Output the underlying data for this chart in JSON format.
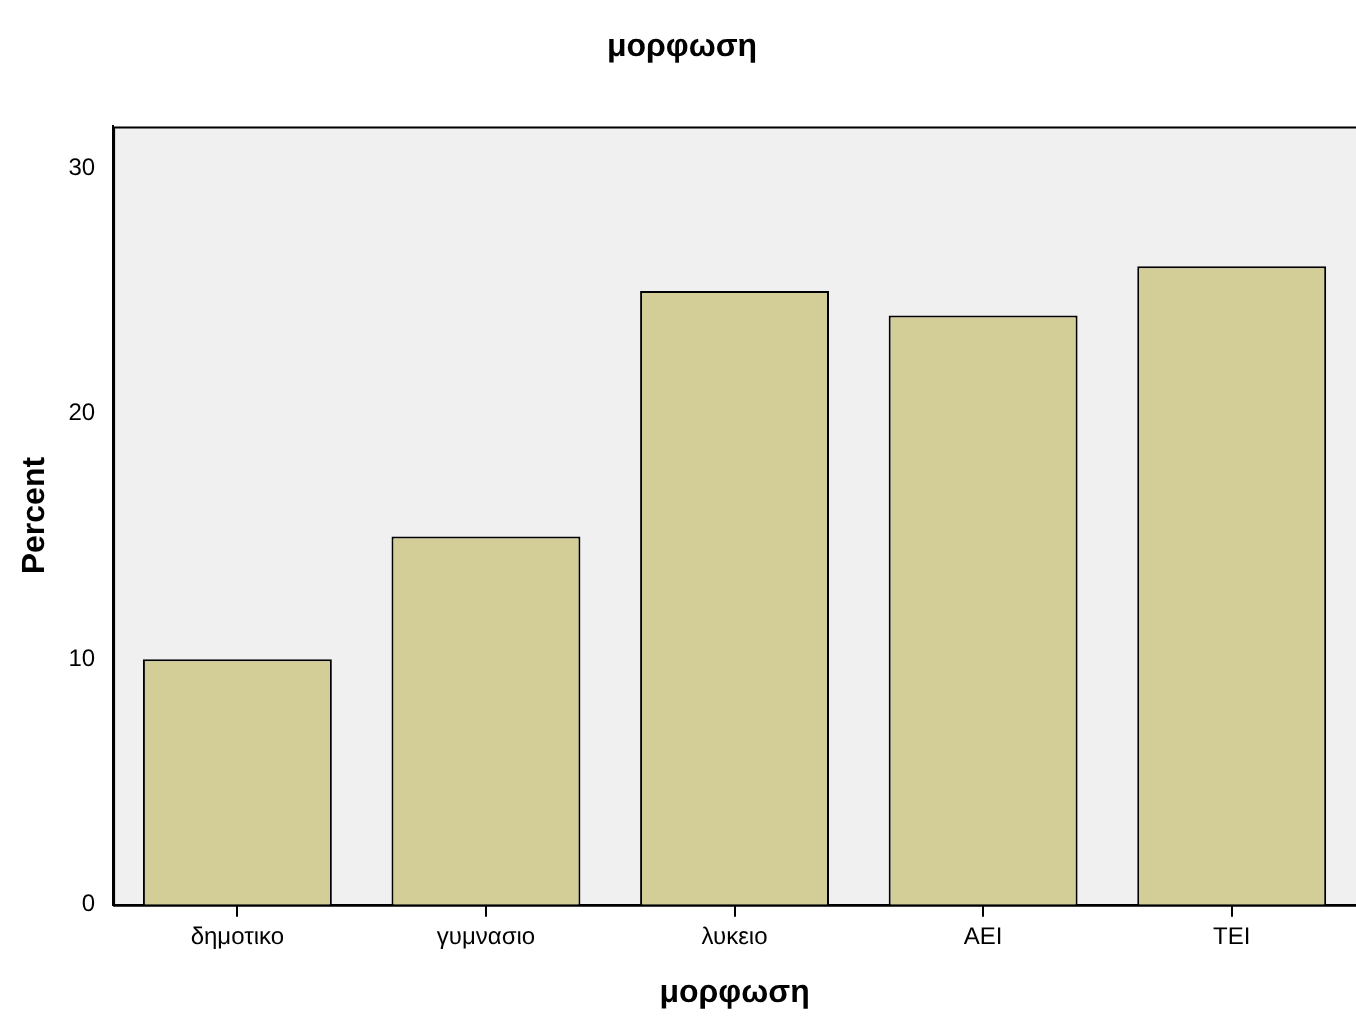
{
  "chart_data": {
    "type": "bar",
    "title": "μορφωση",
    "xlabel": "μορφωση",
    "ylabel": "Percent",
    "categories": [
      "δημοτικο",
      "γυμνασιο",
      "λυκειο",
      "ΑΕΙ",
      "ΤΕΙ"
    ],
    "values": [
      10,
      15,
      25,
      24,
      26
    ],
    "color": "#d3ce98",
    "ylim": [
      0,
      31.7
    ],
    "yticks": [
      0,
      10,
      20,
      30
    ],
    "grid": false,
    "legend": false
  }
}
